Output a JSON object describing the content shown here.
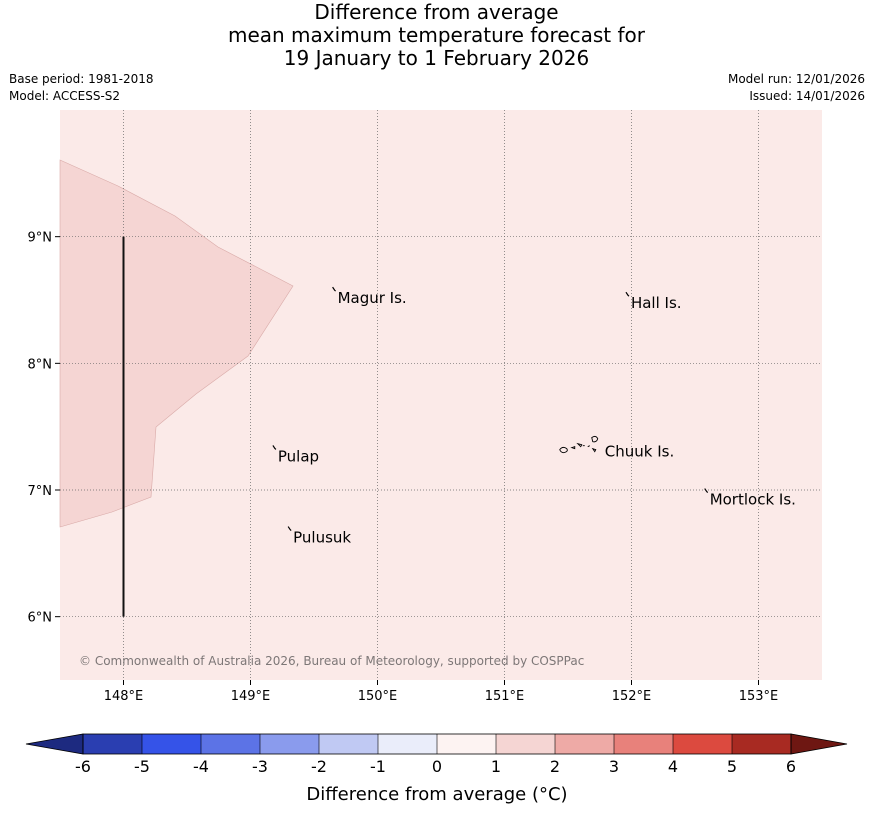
{
  "title": {
    "line1": "Difference from average",
    "line2": "mean maximum temperature forecast for",
    "line3": "19 January to 1 February 2026"
  },
  "meta": {
    "base_period": "Base period: 1981-2018",
    "model": "Model: ACCESS-S2",
    "model_run": "Model run: 12/01/2026",
    "issued": "Issued: 14/01/2026"
  },
  "map": {
    "lon_range": [
      147.5,
      153.5
    ],
    "lat_range": [
      5.5,
      10.0
    ],
    "lon_ticks": [
      {
        "value": 148,
        "label": "148°E"
      },
      {
        "value": 149,
        "label": "149°E"
      },
      {
        "value": 150,
        "label": "150°E"
      },
      {
        "value": 151,
        "label": "151°E"
      },
      {
        "value": 152,
        "label": "152°E"
      },
      {
        "value": 153,
        "label": "153°E"
      }
    ],
    "lat_ticks": [
      {
        "value": 9,
        "label": "9°N"
      },
      {
        "value": 8,
        "label": "8°N"
      },
      {
        "value": 7,
        "label": "7°N"
      },
      {
        "value": 6,
        "label": "6°N"
      }
    ],
    "background_class_color": "#fbeae8",
    "warm_region_color": "#f5d5d3",
    "islands": [
      {
        "name": "Magur Is.",
        "lon": 149.67,
        "lat": 8.57
      },
      {
        "name": "Hall Is.",
        "lon": 151.98,
        "lat": 8.53
      },
      {
        "name": "Pulap",
        "lon": 149.2,
        "lat": 7.32
      },
      {
        "name": "Chuuk Is.",
        "lon": 151.75,
        "lat": 7.35
      },
      {
        "name": "Mortlock Is.",
        "lon": 152.6,
        "lat": 6.98
      },
      {
        "name": "Pulusuk",
        "lon": 149.32,
        "lat": 6.68
      }
    ],
    "copyright": "© Commonwealth of Australia 2026, Bureau of Meteorology, supported by COSPPac"
  },
  "colorbar": {
    "label": "Difference from average ($^\\circ$C)",
    "label_display": "Difference from average (°C)",
    "ticks": [
      "-6",
      "-5",
      "-4",
      "-3",
      "-2",
      "-1",
      "0",
      "1",
      "2",
      "3",
      "4",
      "5",
      "6"
    ],
    "colors": [
      "#2a3eb1",
      "#3553e8",
      "#5c73e6",
      "#8a9bed",
      "#c0c9f3",
      "#eaedfa",
      "#fdf3f2",
      "#f5d5d3",
      "#eeaaa6",
      "#e8817b",
      "#dc4a3f",
      "#a82a22"
    ],
    "under_color": "#1d2a80",
    "over_color": "#6e1712"
  }
}
